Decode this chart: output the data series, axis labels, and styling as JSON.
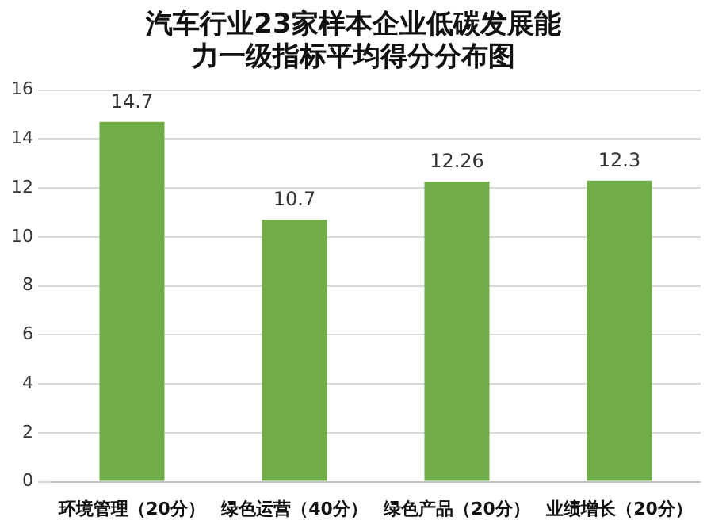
{
  "chart_data": {
    "type": "bar",
    "title": "汽车行业23家样本企业低碳发展能力一级指标平均得分分布图",
    "categories": [
      "环境管理（20分）",
      "绿色运营（40分）",
      "绿色产品（20分）",
      "业绩增长（20分）"
    ],
    "values": [
      14.7,
      10.7,
      12.26,
      12.3
    ],
    "color": "#70ad47",
    "ylim": [
      0,
      16
    ],
    "yticks": [
      0,
      2,
      4,
      6,
      8,
      10,
      12,
      14,
      16
    ],
    "grid": "y",
    "data_labels": true
  }
}
